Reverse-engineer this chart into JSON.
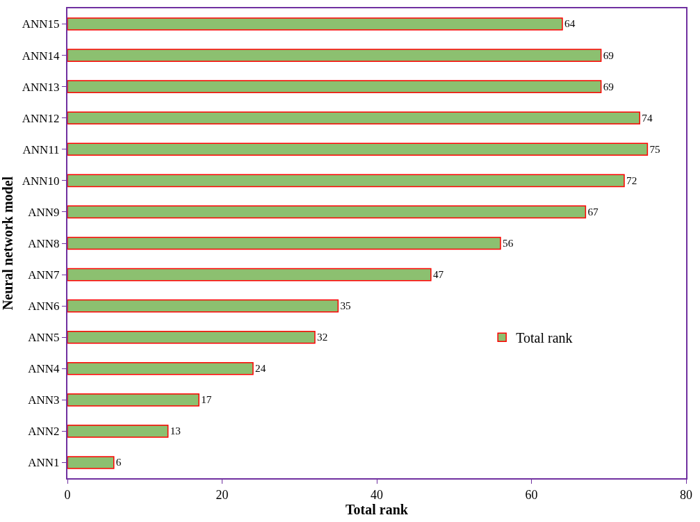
{
  "chart_data": {
    "type": "bar",
    "orientation": "horizontal",
    "xlabel": "Total rank",
    "ylabel": "Neural network model",
    "categories": [
      "ANN15",
      "ANN14",
      "ANN13",
      "ANN12",
      "ANN11",
      "ANN10",
      "ANN9",
      "ANN8",
      "ANN7",
      "ANN6",
      "ANN5",
      "ANN4",
      "ANN3",
      "ANN2",
      "ANN1"
    ],
    "series": [
      {
        "name": "Total rank",
        "color": "#8cc070",
        "values": [
          64,
          69,
          69,
          74,
          75,
          72,
          67,
          56,
          47,
          35,
          32,
          24,
          17,
          13,
          6
        ]
      }
    ],
    "xlim": [
      0,
      80
    ],
    "xticks": [
      0,
      20,
      40,
      60,
      80
    ],
    "data_labels": true,
    "legend": "right"
  }
}
